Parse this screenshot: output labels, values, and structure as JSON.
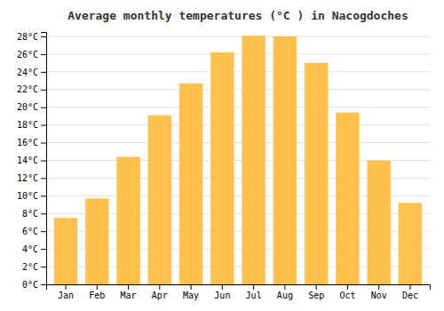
{
  "chart_data": {
    "type": "bar",
    "title": "Average monthly temperatures (°C ) in Nacogdoches",
    "categories": [
      "Jan",
      "Feb",
      "Mar",
      "Apr",
      "May",
      "Jun",
      "Jul",
      "Aug",
      "Sep",
      "Oct",
      "Nov",
      "Dec"
    ],
    "values": [
      7.5,
      9.7,
      14.4,
      19.1,
      22.7,
      26.2,
      28.1,
      28.0,
      25.0,
      19.4,
      14.0,
      9.2
    ],
    "color": "#FFC04C",
    "ylim": [
      0,
      28.5
    ],
    "yticks": [
      {
        "value": 0,
        "label": "0°C"
      },
      {
        "value": 2,
        "label": "2°C"
      },
      {
        "value": 4,
        "label": "4°C"
      },
      {
        "value": 6,
        "label": "6°C"
      },
      {
        "value": 8,
        "label": "8°C"
      },
      {
        "value": 10,
        "label": "10°C"
      },
      {
        "value": 12,
        "label": "12°C"
      },
      {
        "value": 14,
        "label": "14°C"
      },
      {
        "value": 16,
        "label": "16°C"
      },
      {
        "value": 18,
        "label": "18°C"
      },
      {
        "value": 20,
        "label": "20°C"
      },
      {
        "value": 22,
        "label": "22°C"
      },
      {
        "value": 24,
        "label": "24°C"
      },
      {
        "value": 26,
        "label": "26°C"
      },
      {
        "value": 28,
        "label": "28°C"
      }
    ],
    "grid": true
  }
}
